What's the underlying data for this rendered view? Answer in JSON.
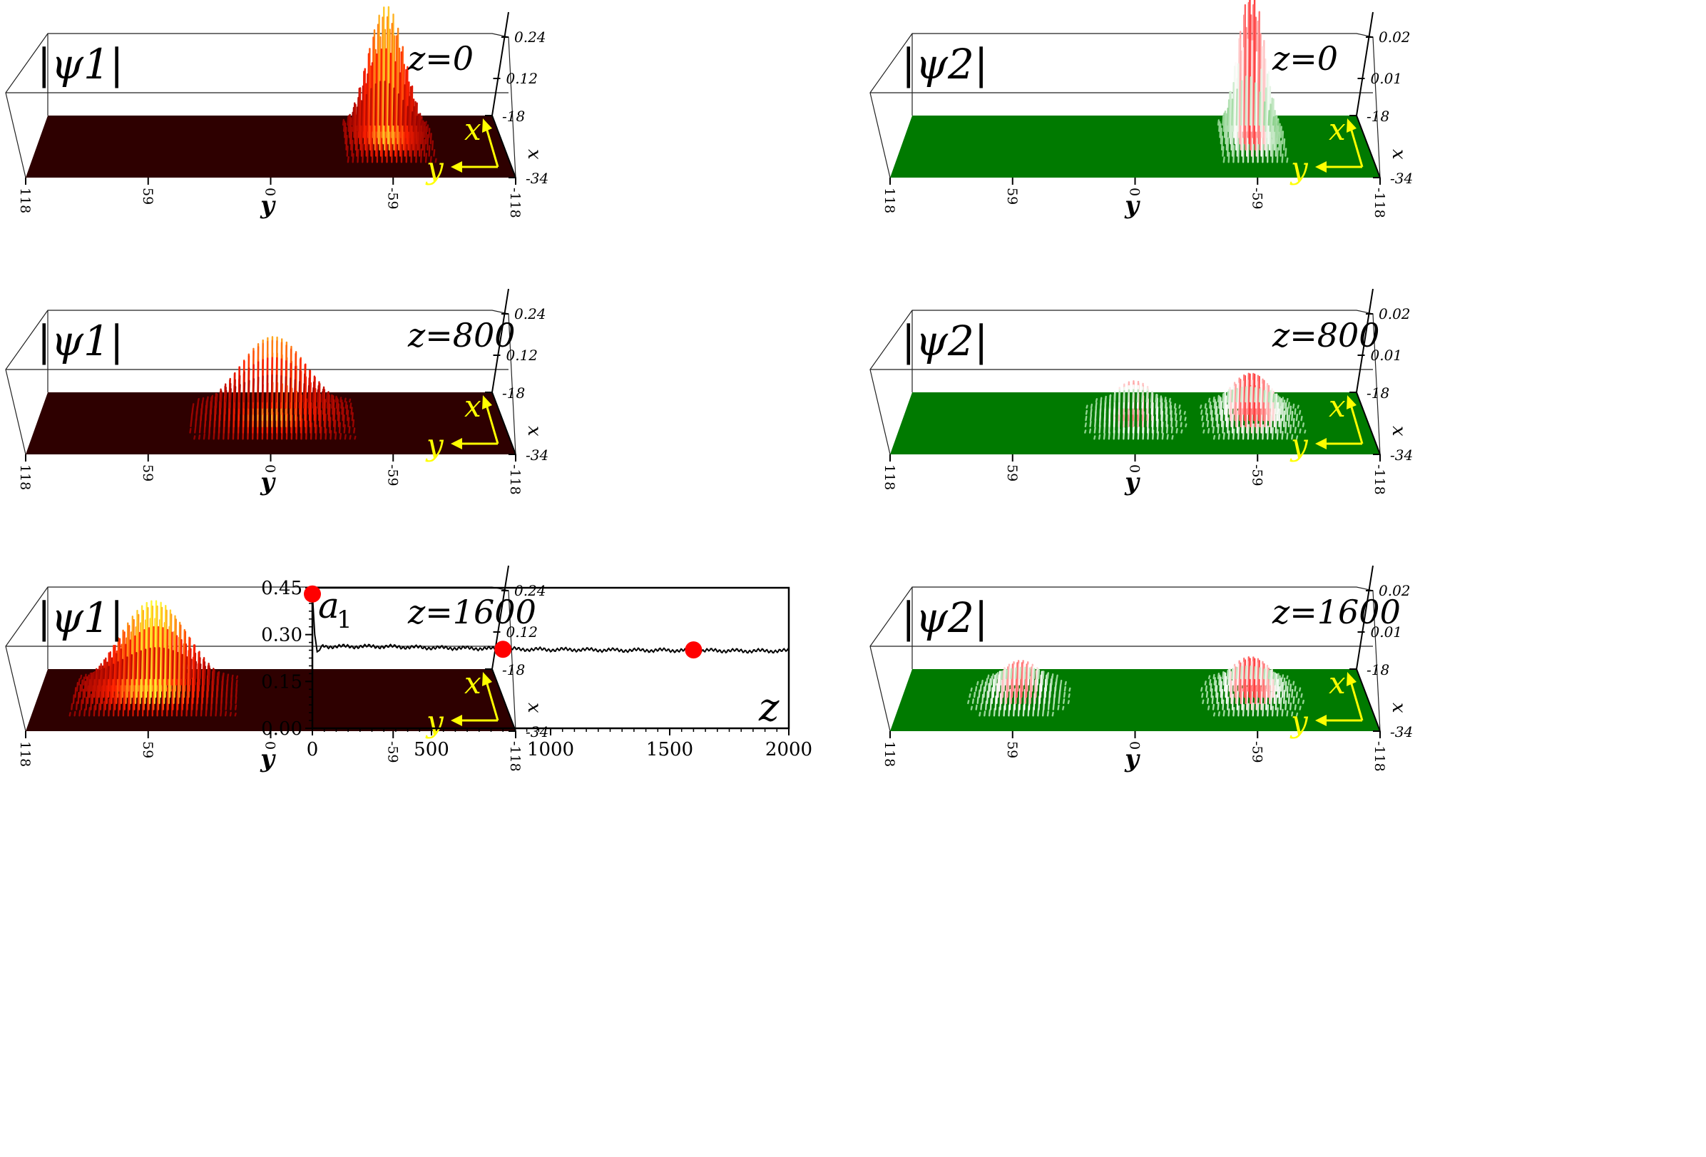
{
  "chart_data": [
    {
      "type": "surface3d",
      "field_label": "|ψ1|",
      "z_label": "z=0",
      "y_label": "y",
      "x_axis_label": "x",
      "y_ticks": [
        "118",
        "59",
        "0",
        "-59",
        "-118"
      ],
      "vertical_ticks": [
        "0.24",
        "0.12"
      ],
      "depth_ticks": [
        "-18",
        "-34"
      ],
      "peak_center_y": -59,
      "peak_height": 0.24,
      "peak_spread": 14,
      "surface_color": "#2e0000",
      "colormap": [
        "#8b0000",
        "#ff2000",
        "#ffff33"
      ],
      "arrow_color": "#ffff00"
    },
    {
      "type": "surface3d",
      "field_label": "|ψ2|",
      "z_label": "z=0",
      "y_label": "y",
      "x_axis_label": "x",
      "y_ticks": [
        "118",
        "59",
        "0",
        "-59",
        "-118"
      ],
      "vertical_ticks": [
        "0.02",
        "0.01"
      ],
      "depth_ticks": [
        "-18",
        "-34"
      ],
      "peak_center_y": -59,
      "peak_height": 0.02,
      "peak_spread": 10,
      "surface_color": "#007a00",
      "colormap": [
        "#7fcc7f",
        "#ffffff",
        "#ff3030"
      ],
      "arrow_color": "#ffff00"
    },
    {
      "type": "surface3d",
      "field_label": "|ψ1|",
      "z_label": "z=800",
      "y_label": "y",
      "x_axis_label": "x",
      "y_ticks": [
        "118",
        "59",
        "0",
        "-59",
        "-118"
      ],
      "vertical_ticks": [
        "0.24",
        "0.12"
      ],
      "depth_ticks": [
        "-18",
        "-34"
      ],
      "peak_center_y": 0,
      "peak_height": 0.16,
      "peak_spread": 26,
      "surface_color": "#2e0000",
      "colormap": [
        "#8b0000",
        "#ff2000",
        "#ffff33"
      ],
      "arrow_color": "#ffff00"
    },
    {
      "type": "surface3d",
      "field_label": "|ψ2|",
      "z_label": "z=800",
      "y_label": "y",
      "x_axis_label": "x",
      "y_ticks": [
        "118",
        "59",
        "0",
        "-59",
        "-118"
      ],
      "vertical_ticks": [
        "0.02",
        "0.01"
      ],
      "depth_ticks": [
        "-18",
        "-34"
      ],
      "peak_center_y": [
        0,
        -59
      ],
      "peak_height": 0.006,
      "peak_spread": 16,
      "surface_color": "#007a00",
      "colormap": [
        "#7fcc7f",
        "#ffffff",
        "#ff3030"
      ],
      "arrow_color": "#ffff00"
    },
    {
      "type": "surface3d",
      "field_label": "|ψ1|",
      "z_label": "z=1600",
      "y_label": "y",
      "x_axis_label": "x",
      "y_ticks": [
        "118",
        "59",
        "0",
        "-59",
        "-118"
      ],
      "vertical_ticks": [
        "0.24",
        "0.12"
      ],
      "depth_ticks": [
        "-18",
        "-34"
      ],
      "peak_center_y": 59,
      "peak_height": 0.15,
      "peak_spread": 26,
      "surface_color": "#2e0000",
      "colormap": [
        "#8b0000",
        "#ff2000",
        "#ffff33"
      ],
      "arrow_color": "#ffff00"
    },
    {
      "type": "surface3d",
      "field_label": "|ψ2|",
      "z_label": "z=1600",
      "y_label": "y",
      "x_axis_label": "x",
      "y_ticks": [
        "118",
        "59",
        "0",
        "-59",
        "-118"
      ],
      "vertical_ticks": [
        "0.02",
        "0.01"
      ],
      "depth_ticks": [
        "-18",
        "-34"
      ],
      "peak_center_y": [
        59,
        -59
      ],
      "peak_height": 0.005,
      "peak_spread": 16,
      "surface_color": "#007a00",
      "colormap": [
        "#7fcc7f",
        "#ffffff",
        "#ff3030"
      ],
      "arrow_color": "#ffff00"
    },
    {
      "type": "line",
      "ylabel": "a1",
      "xlabel": "z",
      "xlim": [
        0,
        2000
      ],
      "ylim": [
        0,
        0.45
      ],
      "x_ticks": [
        "0",
        "500",
        "1000",
        "1500",
        "2000"
      ],
      "y_ticks": [
        "0.00",
        "0.15",
        "0.30",
        "0.45"
      ],
      "x": [
        0,
        10,
        20,
        30,
        40,
        60,
        100,
        200,
        300,
        400,
        500,
        600,
        700,
        800,
        900,
        1000,
        1100,
        1200,
        1300,
        1400,
        1500,
        1600,
        1700,
        1800,
        1900,
        2000
      ],
      "values": [
        0.43,
        0.3,
        0.245,
        0.25,
        0.265,
        0.262,
        0.262,
        0.262,
        0.262,
        0.26,
        0.258,
        0.257,
        0.256,
        0.254,
        0.253,
        0.252,
        0.252,
        0.251,
        0.25,
        0.25,
        0.25,
        0.249,
        0.249,
        0.248,
        0.248,
        0.248
      ],
      "markers": [
        {
          "x": 0,
          "y": 0.43
        },
        {
          "x": 800,
          "y": 0.253
        },
        {
          "x": 1600,
          "y": 0.251
        }
      ],
      "line_color": "#000000",
      "marker_color": "#ff0000"
    }
  ]
}
